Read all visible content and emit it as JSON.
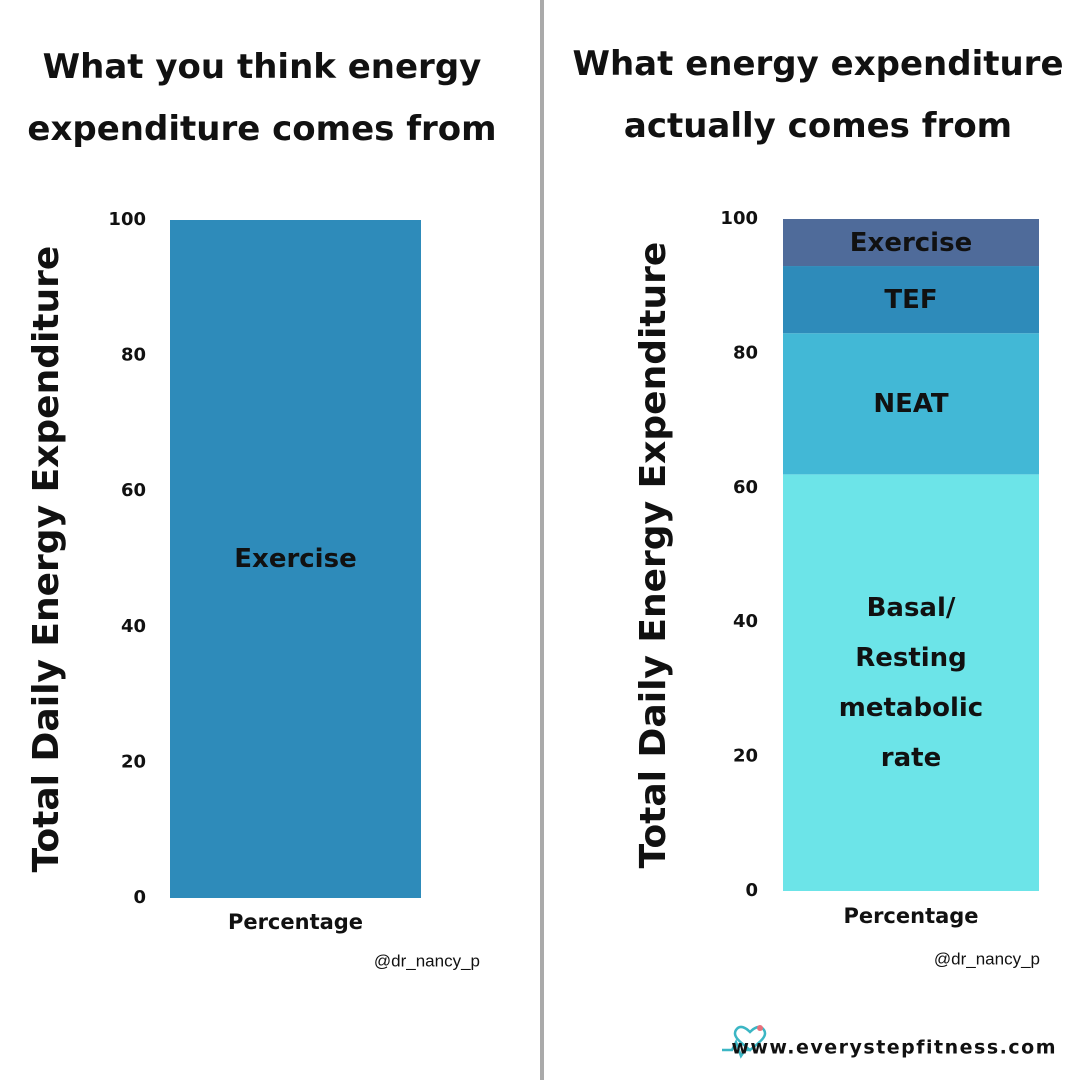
{
  "chart_data": [
    {
      "type": "bar",
      "title": "What you think energy expenditure comes from",
      "ylabel": "Total Daily Energy Expenditure",
      "categories": [
        "Percentage"
      ],
      "series": [
        {
          "name": "Exercise",
          "color": "#2e8bba",
          "values": [
            100
          ]
        }
      ],
      "ylim": [
        0,
        100
      ],
      "yticks": [
        0,
        20,
        40,
        60,
        80,
        100
      ],
      "grid": false,
      "source": "@dr_nancy_p"
    },
    {
      "type": "stacked_bar",
      "title": "What energy expenditure actually comes from",
      "ylabel": "Total Daily Energy Expenditure",
      "categories": [
        "Percentage"
      ],
      "series": [
        {
          "name": "Basal/ Resting metabolic rate",
          "color": "#6ce4e8",
          "values": [
            62
          ]
        },
        {
          "name": "NEAT",
          "color": "#42b8d6",
          "values": [
            21
          ]
        },
        {
          "name": "TEF",
          "color": "#2e8bba",
          "values": [
            10
          ]
        },
        {
          "name": "Exercise",
          "color": "#4f6b9a",
          "values": [
            7
          ]
        }
      ],
      "ylim": [
        0,
        100
      ],
      "yticks": [
        0,
        20,
        40,
        60,
        80,
        100
      ],
      "grid": false,
      "source": "@dr_nancy_p"
    }
  ],
  "website": "www.everystepfitness.com"
}
